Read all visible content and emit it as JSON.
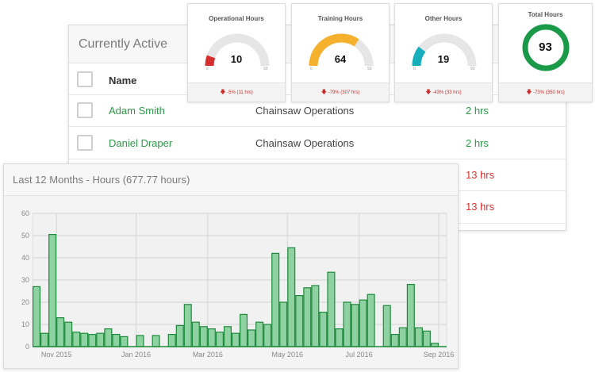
{
  "active": {
    "title": "Currently Active",
    "name_header": "Name",
    "rows": [
      {
        "name": "Adam Smith",
        "course": "Chainsaw Operations",
        "hours": "2 hrs",
        "status": "green"
      },
      {
        "name": "Daniel Draper",
        "course": "Chainsaw Operations",
        "hours": "2 hrs",
        "status": "green"
      },
      {
        "name": "",
        "course": "",
        "hours": "13 hrs",
        "status": "red"
      },
      {
        "name": "",
        "course": "",
        "hours": "13 hrs",
        "status": "red"
      }
    ]
  },
  "cards": [
    {
      "title": "Operational Hours",
      "value": "10",
      "min": "0",
      "max": "93",
      "fraction": 0.1075,
      "color": "#d62f2f",
      "footer": "-5% (11 hrs)"
    },
    {
      "title": "Training Hours",
      "value": "64",
      "min": "0",
      "max": "93",
      "fraction": 0.688,
      "color": "#f5b12e",
      "footer": "-79% (307 hrs)"
    },
    {
      "title": "Other Hours",
      "value": "19",
      "min": "0",
      "max": "93",
      "fraction": 0.204,
      "color": "#19aebc",
      "footer": "-43% (33 hrs)"
    },
    {
      "title": "Total Hours",
      "value": "93",
      "footer": "-73% (350 hrs)",
      "color": "#1a9a48"
    }
  ],
  "chart_panel": {
    "title": "Last 12 Months - Hours (677.77 hours)"
  },
  "chart_data": {
    "type": "bar",
    "title": "Last 12 Months - Hours (677.77 hours)",
    "ylim": [
      0,
      60
    ],
    "yticks": [
      0,
      10,
      20,
      30,
      40,
      50,
      60
    ],
    "xtick_labels": [
      {
        "label": "Nov 2015",
        "index": 3
      },
      {
        "label": "Jan 2016",
        "index": 13
      },
      {
        "label": "Mar 2016",
        "index": 22
      },
      {
        "label": "May 2016",
        "index": 32
      },
      {
        "label": "Jul 2016",
        "index": 41
      },
      {
        "label": "Sep 2016",
        "index": 51
      }
    ],
    "grid": true,
    "bar_color": "#8fd2a2",
    "bar_edge": "#1f8a3c",
    "values": [
      27,
      6,
      50.5,
      13,
      11,
      6.5,
      6,
      5.5,
      6,
      8,
      5.5,
      4.5,
      0,
      5,
      0,
      5,
      0,
      5.5,
      9.5,
      19,
      11,
      9,
      8,
      6.5,
      9,
      6,
      14.5,
      7.5,
      11,
      10,
      42,
      20,
      44.5,
      23,
      26.5,
      27.5,
      15.5,
      33.5,
      8,
      20,
      19,
      21,
      23.5,
      0,
      18.5,
      5.5,
      8.5,
      28,
      8.5,
      7,
      1.5,
      0
    ]
  }
}
